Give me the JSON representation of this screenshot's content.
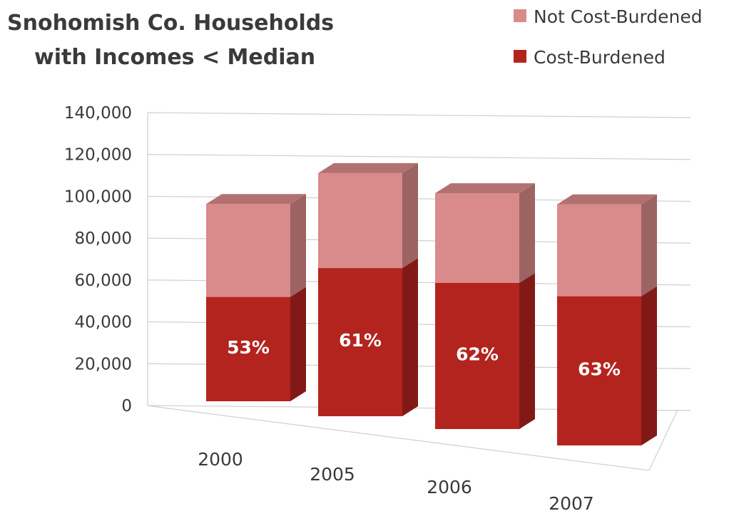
{
  "chart_data": {
    "type": "bar",
    "stacked": true,
    "title_lines": [
      "Snohomish Co. Households",
      "with Incomes < Median"
    ],
    "categories": [
      "2000",
      "2005",
      "2006",
      "2007"
    ],
    "series": [
      {
        "name": "Cost-Burdened",
        "values": [
          50000,
          71000,
          70000,
          71500
        ],
        "color": "#b3241f"
      },
      {
        "name": "Not Cost-Burdened",
        "values": [
          44500,
          45500,
          43000,
          44000
        ],
        "color": "#d98a8a"
      }
    ],
    "data_labels": [
      "53%",
      "61%",
      "62%",
      "63%"
    ],
    "y_ticks": [
      "0",
      "20,000",
      "40,000",
      "60,000",
      "80,000",
      "100,000",
      "120,000",
      "140,000"
    ],
    "ylim": [
      0,
      140000
    ],
    "grid": true,
    "legend_position": "top-right",
    "legend_order": [
      "Not Cost-Burdened",
      "Cost-Burdened"
    ]
  }
}
